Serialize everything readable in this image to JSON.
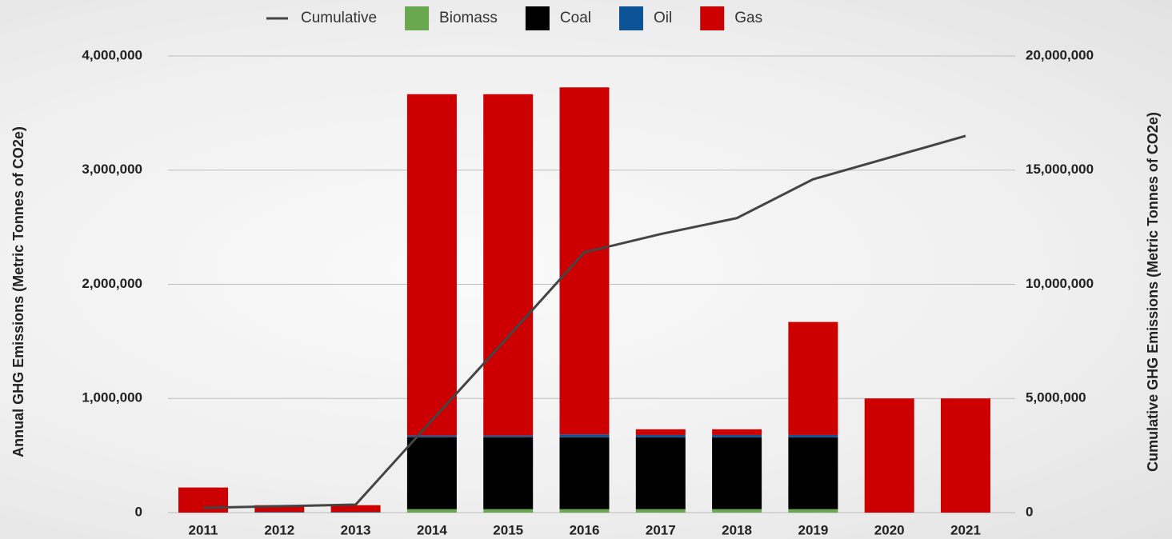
{
  "chart_data": {
    "type": "bar",
    "stacked": true,
    "categories": [
      "2011",
      "2012",
      "2013",
      "2014",
      "2015",
      "2016",
      "2017",
      "2018",
      "2019",
      "2020",
      "2021"
    ],
    "series": [
      {
        "name": "Biomass",
        "color": "#6aa84f",
        "values": [
          0,
          0,
          0,
          30000,
          30000,
          30000,
          30000,
          30000,
          30000,
          0,
          0
        ]
      },
      {
        "name": "Coal",
        "color": "#000000",
        "values": [
          0,
          0,
          0,
          630000,
          630000,
          630000,
          630000,
          630000,
          630000,
          0,
          0
        ]
      },
      {
        "name": "Oil",
        "color": "#0b5394",
        "values": [
          0,
          5000,
          5000,
          15000,
          15000,
          25000,
          20000,
          20000,
          20000,
          0,
          0
        ]
      },
      {
        "name": "Gas",
        "color": "#cc0000",
        "values": [
          220000,
          60000,
          60000,
          2990000,
          2990000,
          3040000,
          50000,
          50000,
          990000,
          1000000,
          1000000
        ]
      },
      {
        "name": "Cumulative",
        "type": "line",
        "axis": "y2",
        "color": "#444444",
        "values": [
          210000,
          280000,
          350000,
          4040000,
          7700000,
          11400000,
          12200000,
          12900000,
          14600000,
          15550000,
          16500000
        ]
      }
    ],
    "ylabel": "Annual GHG Emissions (Metric Tonnes of CO2e)",
    "y2label": "Cumulative GHG Emissions (Metric Tonnes of CO2e)",
    "ylim": [
      0,
      4000000
    ],
    "yticks": [
      0,
      {
        "value": 1000000,
        "label": "1,000,000"
      },
      {
        "value": 2000000,
        "label": "2,000,000"
      },
      {
        "value": 3000000,
        "label": "3,000,000"
      },
      {
        "value": 4000000,
        "label": "4,000,000"
      }
    ],
    "y2lim": [
      0,
      20000000
    ],
    "y2ticks": [
      0,
      {
        "value": 5000000,
        "label": "5,000,000"
      },
      {
        "value": 10000000,
        "label": "10,000,000"
      },
      {
        "value": 15000000,
        "label": "15,000,000"
      },
      {
        "value": 20000000,
        "label": "20,000,000"
      }
    ],
    "grid": true,
    "legend": "top"
  }
}
